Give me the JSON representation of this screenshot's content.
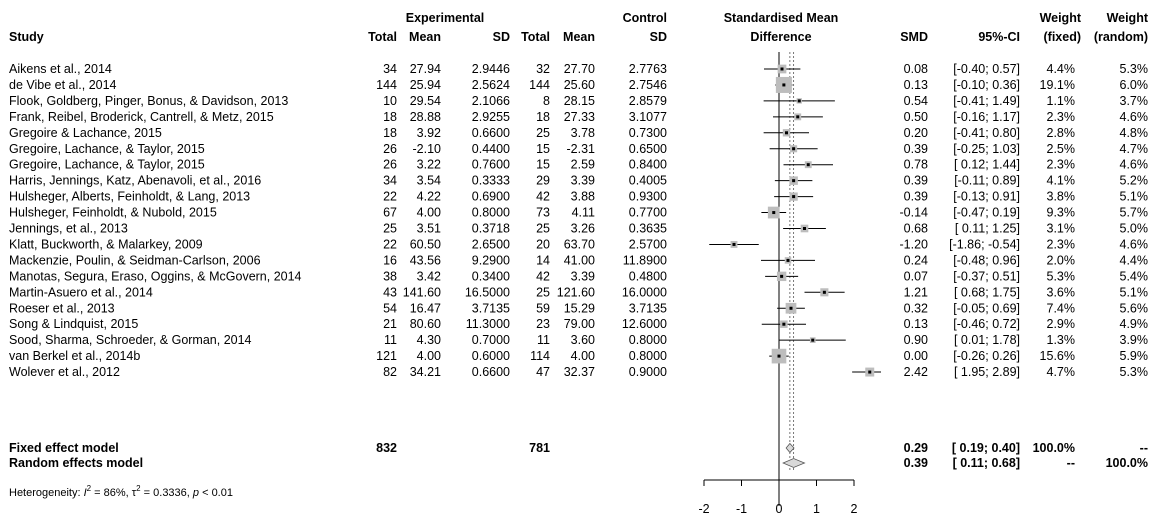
{
  "headers": {
    "study": "Study",
    "experimental": "Experimental",
    "control": "Control",
    "total_e": "Total",
    "mean_e": "Mean",
    "sd_e": "SD",
    "total_c": "Total",
    "mean_c": "Mean",
    "sd_c": "SD",
    "smd_line1": "Standardised Mean",
    "smd_line2": "Difference",
    "smd": "SMD",
    "ci": "95%-CI",
    "weight_line1": "Weight",
    "weight_fixed": "(fixed)",
    "weight_line1b": "Weight",
    "weight_random": "(random)"
  },
  "chart_data": {
    "type": "forest",
    "xlim": [
      -2,
      2
    ],
    "x_ticks": [
      -2,
      -1,
      0,
      1,
      2
    ],
    "x_tick_labels": [
      "-2",
      "-1",
      "0",
      "1",
      "2"
    ],
    "fixed_estimate": 0.29,
    "random_estimate": 0.39,
    "studies": [
      {
        "study": "Aikens et al., 2014",
        "total_e": "34",
        "mean_e": "27.94",
        "sd_e": "2.9446",
        "total_c": "32",
        "mean_c": "27.70",
        "sd_c": "2.7763",
        "smd": 0.08,
        "ci_low": -0.4,
        "ci_high": 0.57,
        "smd_text": "0.08",
        "ci_text": "[-0.40; 0.57]",
        "w_fixed": "4.4%",
        "w_random": "5.3%",
        "weight_fixed": 4.4
      },
      {
        "study": "de Vibe et al., 2014",
        "total_e": "144",
        "mean_e": "25.94",
        "sd_e": "2.5624",
        "total_c": "144",
        "mean_c": "25.60",
        "sd_c": "2.7546",
        "smd": 0.13,
        "ci_low": -0.1,
        "ci_high": 0.36,
        "smd_text": "0.13",
        "ci_text": "[-0.10; 0.36]",
        "w_fixed": "19.1%",
        "w_random": "6.0%",
        "weight_fixed": 19.1
      },
      {
        "study": "Flook, Goldberg, Pinger, Bonus, & Davidson, 2013",
        "total_e": "10",
        "mean_e": "29.54",
        "sd_e": "2.1066",
        "total_c": "8",
        "mean_c": "28.15",
        "sd_c": "2.8579",
        "smd": 0.54,
        "ci_low": -0.41,
        "ci_high": 1.49,
        "smd_text": "0.54",
        "ci_text": "[-0.41; 1.49]",
        "w_fixed": "1.1%",
        "w_random": "3.7%",
        "weight_fixed": 1.1
      },
      {
        "study": "Frank, Reibel, Broderick, Cantrell, & Metz, 2015",
        "total_e": "18",
        "mean_e": "28.88",
        "sd_e": "2.9255",
        "total_c": "18",
        "mean_c": "27.33",
        "sd_c": "3.1077",
        "smd": 0.5,
        "ci_low": -0.16,
        "ci_high": 1.17,
        "smd_text": "0.50",
        "ci_text": "[-0.16; 1.17]",
        "w_fixed": "2.3%",
        "w_random": "4.6%",
        "weight_fixed": 2.3
      },
      {
        "study": "Gregoire & Lachance, 2015",
        "total_e": "18",
        "mean_e": "3.92",
        "sd_e": "0.6600",
        "total_c": "25",
        "mean_c": "3.78",
        "sd_c": "0.7300",
        "smd": 0.2,
        "ci_low": -0.41,
        "ci_high": 0.8,
        "smd_text": "0.20",
        "ci_text": "[-0.41; 0.80]",
        "w_fixed": "2.8%",
        "w_random": "4.8%",
        "weight_fixed": 2.8
      },
      {
        "study": "Gregoire, Lachance, & Taylor, 2015",
        "total_e": "26",
        "mean_e": "-2.10",
        "sd_e": "0.4400",
        "total_c": "15",
        "mean_c": "-2.31",
        "sd_c": "0.6500",
        "smd": 0.39,
        "ci_low": -0.25,
        "ci_high": 1.03,
        "smd_text": "0.39",
        "ci_text": "[-0.25; 1.03]",
        "w_fixed": "2.5%",
        "w_random": "4.7%",
        "weight_fixed": 2.5
      },
      {
        "study": "Gregoire, Lachance, & Taylor, 2015",
        "total_e": "26",
        "mean_e": "3.22",
        "sd_e": "0.7600",
        "total_c": "15",
        "mean_c": "2.59",
        "sd_c": "0.8400",
        "smd": 0.78,
        "ci_low": 0.12,
        "ci_high": 1.44,
        "smd_text": "0.78",
        "ci_text": "[ 0.12; 1.44]",
        "w_fixed": "2.3%",
        "w_random": "4.6%",
        "weight_fixed": 2.3
      },
      {
        "study": "Harris, Jennings, Katz, Abenavoli, et al., 2016",
        "total_e": "34",
        "mean_e": "3.54",
        "sd_e": "0.3333",
        "total_c": "29",
        "mean_c": "3.39",
        "sd_c": "0.4005",
        "smd": 0.39,
        "ci_low": -0.11,
        "ci_high": 0.89,
        "smd_text": "0.39",
        "ci_text": "[-0.11; 0.89]",
        "w_fixed": "4.1%",
        "w_random": "5.2%",
        "weight_fixed": 4.1
      },
      {
        "study": "Hulsheger, Alberts, Feinholdt, & Lang, 2013",
        "total_e": "22",
        "mean_e": "4.22",
        "sd_e": "0.6900",
        "total_c": "42",
        "mean_c": "3.88",
        "sd_c": "0.9300",
        "smd": 0.39,
        "ci_low": -0.13,
        "ci_high": 0.91,
        "smd_text": "0.39",
        "ci_text": "[-0.13; 0.91]",
        "w_fixed": "3.8%",
        "w_random": "5.1%",
        "weight_fixed": 3.8
      },
      {
        "study": "Hulsheger, Feinholdt, & Nubold, 2015",
        "total_e": "67",
        "mean_e": "4.00",
        "sd_e": "0.8000",
        "total_c": "73",
        "mean_c": "4.11",
        "sd_c": "0.7700",
        "smd": -0.14,
        "ci_low": -0.47,
        "ci_high": 0.19,
        "smd_text": "-0.14",
        "ci_text": "[-0.47; 0.19]",
        "w_fixed": "9.3%",
        "w_random": "5.7%",
        "weight_fixed": 9.3
      },
      {
        "study": "Jennings, et al., 2013",
        "total_e": "25",
        "mean_e": "3.51",
        "sd_e": "0.3718",
        "total_c": "25",
        "mean_c": "3.26",
        "sd_c": "0.3635",
        "smd": 0.68,
        "ci_low": 0.11,
        "ci_high": 1.25,
        "smd_text": "0.68",
        "ci_text": "[ 0.11; 1.25]",
        "w_fixed": "3.1%",
        "w_random": "5.0%",
        "weight_fixed": 3.1
      },
      {
        "study": "Klatt, Buckworth, & Malarkey, 2009",
        "total_e": "22",
        "mean_e": "60.50",
        "sd_e": "2.6500",
        "total_c": "20",
        "mean_c": "63.70",
        "sd_c": "2.5700",
        "smd": -1.2,
        "ci_low": -1.86,
        "ci_high": -0.54,
        "smd_text": "-1.20",
        "ci_text": "[-1.86; -0.54]",
        "w_fixed": "2.3%",
        "w_random": "4.6%",
        "weight_fixed": 2.3
      },
      {
        "study": "Mackenzie, Poulin, & Seidman-Carlson, 2006",
        "total_e": "16",
        "mean_e": "43.56",
        "sd_e": "9.2900",
        "total_c": "14",
        "mean_c": "41.00",
        "sd_c": "11.8900",
        "smd": 0.24,
        "ci_low": -0.48,
        "ci_high": 0.96,
        "smd_text": "0.24",
        "ci_text": "[-0.48; 0.96]",
        "w_fixed": "2.0%",
        "w_random": "4.4%",
        "weight_fixed": 2.0
      },
      {
        "study": "Manotas, Segura, Eraso, Oggins, & McGovern, 2014",
        "total_e": "38",
        "mean_e": "3.42",
        "sd_e": "0.3400",
        "total_c": "42",
        "mean_c": "3.39",
        "sd_c": "0.4800",
        "smd": 0.07,
        "ci_low": -0.37,
        "ci_high": 0.51,
        "smd_text": "0.07",
        "ci_text": "[-0.37; 0.51]",
        "w_fixed": "5.3%",
        "w_random": "5.4%",
        "weight_fixed": 5.3
      },
      {
        "study": "Martin-Asuero et al., 2014",
        "total_e": "43",
        "mean_e": "141.60",
        "sd_e": "16.5000",
        "total_c": "25",
        "mean_c": "121.60",
        "sd_c": "16.0000",
        "smd": 1.21,
        "ci_low": 0.68,
        "ci_high": 1.75,
        "smd_text": "1.21",
        "ci_text": "[ 0.68; 1.75]",
        "w_fixed": "3.6%",
        "w_random": "5.1%",
        "weight_fixed": 3.6
      },
      {
        "study": "Roeser et al., 2013",
        "total_e": "54",
        "mean_e": "16.47",
        "sd_e": "3.7135",
        "total_c": "59",
        "mean_c": "15.29",
        "sd_c": "3.7135",
        "smd": 0.32,
        "ci_low": -0.05,
        "ci_high": 0.69,
        "smd_text": "0.32",
        "ci_text": "[-0.05; 0.69]",
        "w_fixed": "7.4%",
        "w_random": "5.6%",
        "weight_fixed": 7.4
      },
      {
        "study": "Song & Lindquist, 2015",
        "total_e": "21",
        "mean_e": "80.60",
        "sd_e": "11.3000",
        "total_c": "23",
        "mean_c": "79.00",
        "sd_c": "12.6000",
        "smd": 0.13,
        "ci_low": -0.46,
        "ci_high": 0.72,
        "smd_text": "0.13",
        "ci_text": "[-0.46; 0.72]",
        "w_fixed": "2.9%",
        "w_random": "4.9%",
        "weight_fixed": 2.9
      },
      {
        "study": "Sood, Sharma, Schroeder, & Gorman, 2014",
        "total_e": "11",
        "mean_e": "4.30",
        "sd_e": "0.7000",
        "total_c": "11",
        "mean_c": "3.60",
        "sd_c": "0.8000",
        "smd": 0.9,
        "ci_low": 0.01,
        "ci_high": 1.78,
        "smd_text": "0.90",
        "ci_text": "[ 0.01; 1.78]",
        "w_fixed": "1.3%",
        "w_random": "3.9%",
        "weight_fixed": 1.3
      },
      {
        "study": "van Berkel et al., 2014b",
        "total_e": "121",
        "mean_e": "4.00",
        "sd_e": "0.6000",
        "total_c": "114",
        "mean_c": "4.00",
        "sd_c": "0.8000",
        "smd": 0.0,
        "ci_low": -0.26,
        "ci_high": 0.26,
        "smd_text": "0.00",
        "ci_text": "[-0.26; 0.26]",
        "w_fixed": "15.6%",
        "w_random": "5.9%",
        "weight_fixed": 15.6
      },
      {
        "study": "Wolever et al., 2012",
        "total_e": "82",
        "mean_e": "34.21",
        "sd_e": "0.6600",
        "total_c": "47",
        "mean_c": "32.37",
        "sd_c": "0.9000",
        "smd": 2.42,
        "ci_low": 1.95,
        "ci_high": 2.89,
        "smd_text": "2.42",
        "ci_text": "[ 1.95; 2.89]",
        "w_fixed": "4.7%",
        "w_random": "5.3%",
        "weight_fixed": 4.7
      }
    ],
    "summaries": [
      {
        "label": "Fixed effect model",
        "total_e": "832",
        "total_c": "781",
        "smd": 0.29,
        "ci_low": 0.19,
        "ci_high": 0.4,
        "smd_text": "0.29",
        "ci_text": "[ 0.19; 0.40]",
        "w_fixed": "100.0%",
        "w_random": "--"
      },
      {
        "label": "Random effects model",
        "total_e": "",
        "total_c": "",
        "smd": 0.39,
        "ci_low": 0.11,
        "ci_high": 0.68,
        "smd_text": "0.39",
        "ci_text": "[ 0.11; 0.68]",
        "w_fixed": "--",
        "w_random": "100.0%"
      }
    ],
    "heterogeneity": {
      "prefix": "Heterogeneity: ",
      "i2_symbol": "I",
      "i2_sup": "2",
      "i2_value": " = 86%, ",
      "tau_symbol": "τ",
      "tau_sup": "2",
      "tau_value": " = 0.3336, ",
      "p_symbol": "p",
      "p_value": " < 0.01"
    }
  }
}
